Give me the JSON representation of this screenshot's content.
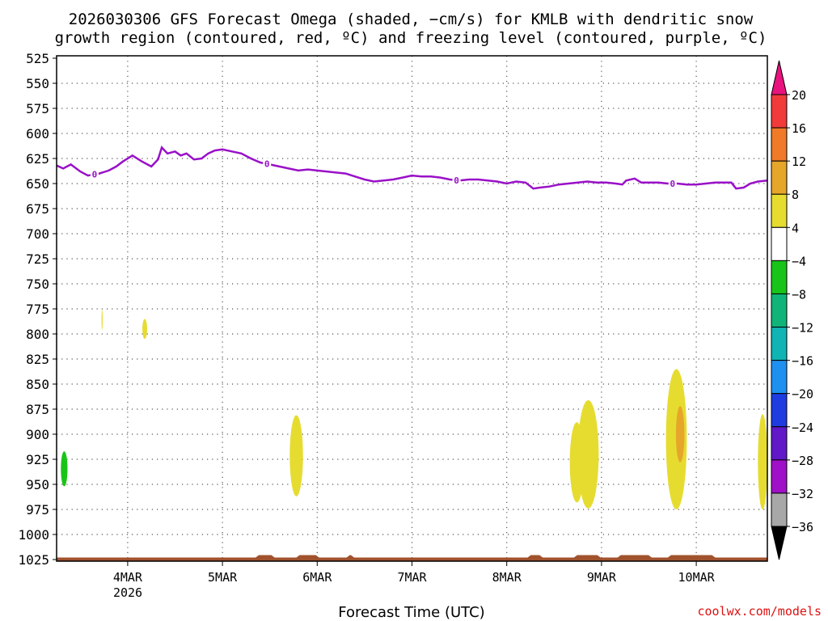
{
  "chart_data": {
    "type": "heatmap",
    "title_line1": "2026030306 GFS Forecast Omega (shaded, −cm/s) for KMLB with dendritic snow",
    "title_line2": "growth region (contoured, red, ºC) and freezing level (contoured, purple, ºC)",
    "xlabel": "Forecast Time (UTC)",
    "credit": "coolwx.com/models",
    "x_range_days": [
      3.25,
      10.75
    ],
    "x_ticks": [
      {
        "day": 4,
        "label": "4MAR"
      },
      {
        "day": 5,
        "label": "5MAR"
      },
      {
        "day": 6,
        "label": "6MAR"
      },
      {
        "day": 7,
        "label": "7MAR"
      },
      {
        "day": 8,
        "label": "8MAR"
      },
      {
        "day": 9,
        "label": "9MAR"
      },
      {
        "day": 10,
        "label": "10MAR"
      }
    ],
    "year_label": "2026",
    "y_axis_pressure_hpa": [
      "525",
      "550",
      "575",
      "600",
      "625",
      "650",
      "675",
      "700",
      "725",
      "750",
      "775",
      "800",
      "825",
      "850",
      "875",
      "900",
      "925",
      "950",
      "975",
      "1000",
      "1025"
    ],
    "colorbar": {
      "levels": [
        "20",
        "16",
        "12",
        "8",
        "4",
        "−4",
        "−8",
        "−12",
        "−16",
        "−20",
        "−24",
        "−28",
        "−32",
        "−36"
      ],
      "colors": [
        "#e8137e",
        "#f13a3a",
        "#f07a28",
        "#e6a62a",
        "#e6dc30",
        "#ffffff",
        "#18c418",
        "#10b478",
        "#10b4b4",
        "#1e90f0",
        "#1e3ce0",
        "#6018c8",
        "#a010c8",
        "#a8a8a8",
        "#000000"
      ]
    },
    "freezing_level": {
      "label": "0",
      "label_days": [
        3.65,
        5.47,
        7.47,
        9.75
      ],
      "points": [
        [
          3.25,
          632
        ],
        [
          3.32,
          635
        ],
        [
          3.4,
          631
        ],
        [
          3.5,
          638
        ],
        [
          3.58,
          642
        ],
        [
          3.7,
          640
        ],
        [
          3.8,
          637
        ],
        [
          3.88,
          633
        ],
        [
          3.95,
          628
        ],
        [
          4.05,
          622
        ],
        [
          4.15,
          628
        ],
        [
          4.25,
          633
        ],
        [
          4.32,
          626
        ],
        [
          4.36,
          614
        ],
        [
          4.42,
          620
        ],
        [
          4.5,
          618
        ],
        [
          4.56,
          622
        ],
        [
          4.62,
          620
        ],
        [
          4.7,
          626
        ],
        [
          4.78,
          625
        ],
        [
          4.85,
          620
        ],
        [
          4.92,
          617
        ],
        [
          5.0,
          616
        ],
        [
          5.1,
          618
        ],
        [
          5.2,
          620
        ],
        [
          5.3,
          625
        ],
        [
          5.4,
          629
        ],
        [
          5.5,
          631
        ],
        [
          5.6,
          633
        ],
        [
          5.7,
          635
        ],
        [
          5.8,
          637
        ],
        [
          5.9,
          636
        ],
        [
          6.0,
          637
        ],
        [
          6.1,
          638
        ],
        [
          6.2,
          639
        ],
        [
          6.3,
          640
        ],
        [
          6.4,
          643
        ],
        [
          6.5,
          646
        ],
        [
          6.6,
          648
        ],
        [
          6.7,
          647
        ],
        [
          6.8,
          646
        ],
        [
          6.9,
          644
        ],
        [
          7.0,
          642
        ],
        [
          7.1,
          643
        ],
        [
          7.2,
          643
        ],
        [
          7.3,
          644
        ],
        [
          7.4,
          646
        ],
        [
          7.5,
          647
        ],
        [
          7.6,
          646
        ],
        [
          7.7,
          646
        ],
        [
          7.8,
          647
        ],
        [
          7.9,
          648
        ],
        [
          8.0,
          650
        ],
        [
          8.1,
          648
        ],
        [
          8.2,
          649
        ],
        [
          8.28,
          655
        ],
        [
          8.35,
          654
        ],
        [
          8.45,
          653
        ],
        [
          8.55,
          651
        ],
        [
          8.65,
          650
        ],
        [
          8.75,
          649
        ],
        [
          8.85,
          648
        ],
        [
          8.95,
          649
        ],
        [
          9.05,
          649
        ],
        [
          9.15,
          650
        ],
        [
          9.22,
          651
        ],
        [
          9.26,
          647
        ],
        [
          9.35,
          645
        ],
        [
          9.42,
          649
        ],
        [
          9.5,
          649
        ],
        [
          9.6,
          649
        ],
        [
          9.7,
          650
        ],
        [
          9.8,
          650
        ],
        [
          9.9,
          651
        ],
        [
          10.0,
          651
        ],
        [
          10.1,
          650
        ],
        [
          10.2,
          649
        ],
        [
          10.3,
          649
        ],
        [
          10.37,
          649
        ],
        [
          10.42,
          655
        ],
        [
          10.5,
          654
        ],
        [
          10.57,
          650
        ],
        [
          10.65,
          648
        ],
        [
          10.75,
          647
        ]
      ]
    },
    "ground_level_hpa": 1023,
    "omega_regions": [
      {
        "name": "3mar-small-green",
        "day": 3.33,
        "p": [
          917,
          952
        ],
        "half_width_days": 0.035,
        "color": "#18c418"
      },
      {
        "name": "3mar-thin-yellow",
        "day": 3.73,
        "p": [
          776,
          796
        ],
        "half_width_days": 0.006,
        "color": "#e6dc30"
      },
      {
        "name": "4mar-yellow",
        "day": 4.18,
        "p": [
          785,
          805
        ],
        "half_width_days": 0.025,
        "color": "#e6dc30"
      },
      {
        "name": "5mar-yellow",
        "day": 5.78,
        "p": [
          881,
          962
        ],
        "half_width_days": 0.07,
        "color": "#e6dc30"
      },
      {
        "name": "9mar-yellow-left",
        "day": 8.74,
        "p": [
          888,
          968
        ],
        "half_width_days": 0.075,
        "color": "#e6dc30"
      },
      {
        "name": "9mar-yellow-main",
        "day": 8.86,
        "p": [
          866,
          974
        ],
        "half_width_days": 0.11,
        "color": "#e6dc30"
      },
      {
        "name": "10mar-yellow",
        "day": 9.79,
        "p": [
          835,
          975
        ],
        "half_width_days": 0.11,
        "color": "#e6dc30"
      },
      {
        "name": "10mar-orange",
        "day": 9.83,
        "p": [
          872,
          928
        ],
        "half_width_days": 0.045,
        "color": "#e6a62a"
      },
      {
        "name": "10mar-yellow-edge",
        "day": 10.7,
        "p": [
          880,
          975
        ],
        "half_width_days": 0.05,
        "color": "#e6dc30"
      }
    ]
  }
}
